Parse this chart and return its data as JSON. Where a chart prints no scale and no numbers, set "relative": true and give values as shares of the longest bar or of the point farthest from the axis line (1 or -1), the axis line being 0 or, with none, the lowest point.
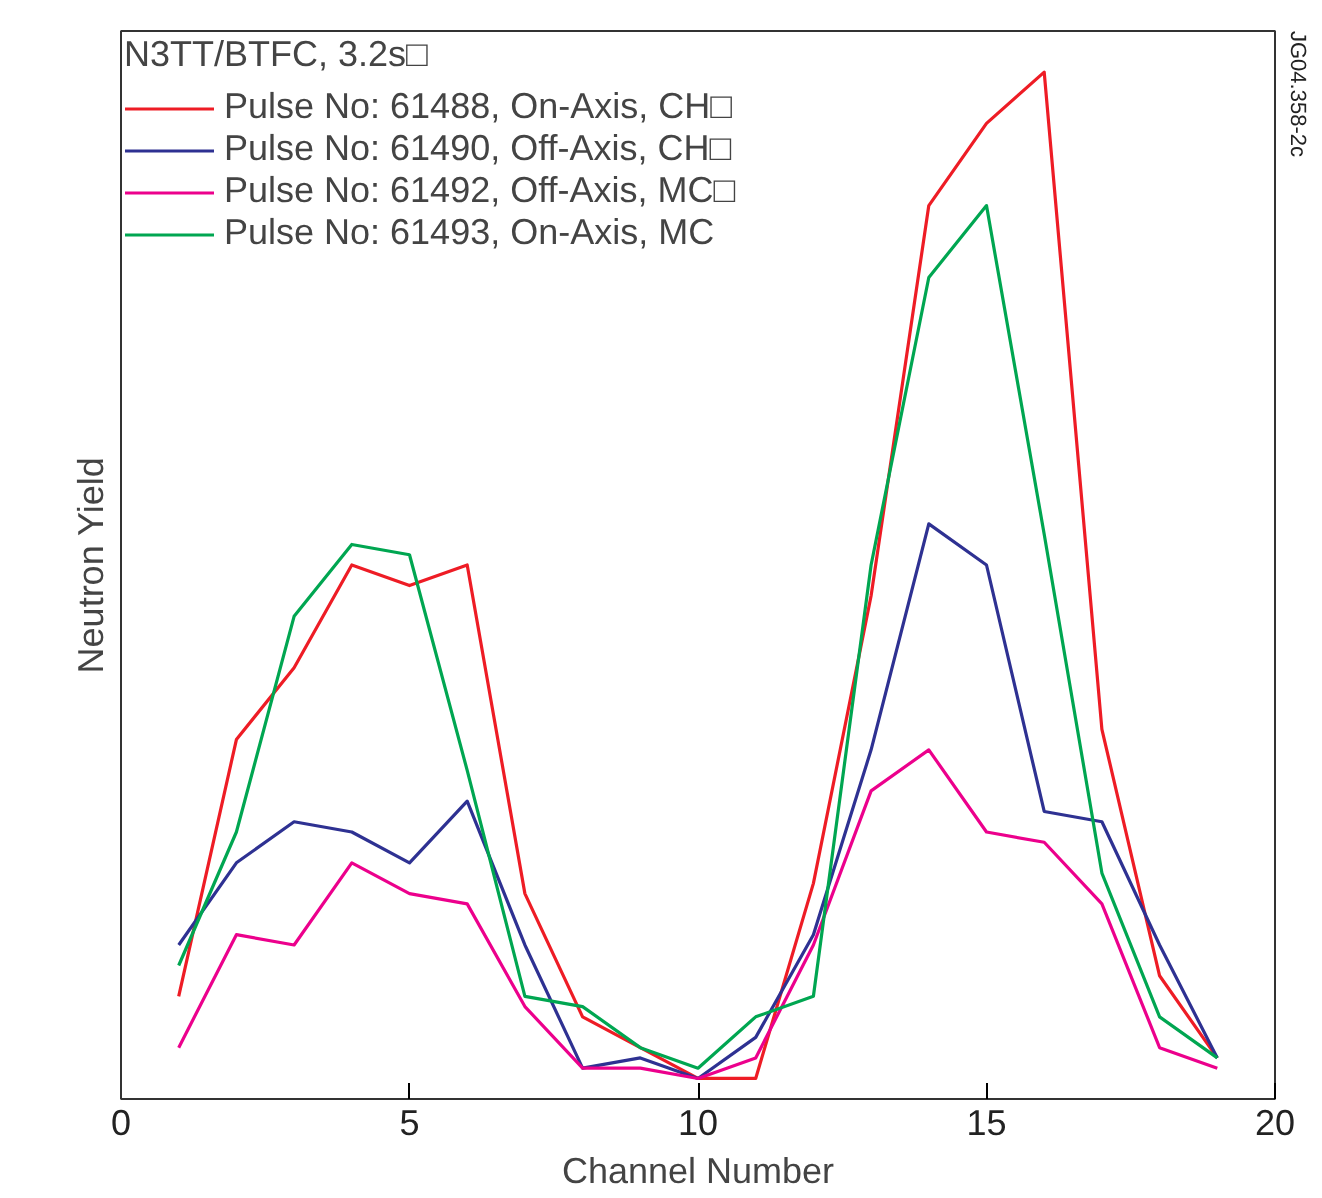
{
  "chart_data": {
    "type": "line",
    "relative": true,
    "xlabel": "Channel Number",
    "ylabel": "Neutron Yield",
    "legend_title": "N3TT/BTFC, 3.2s□",
    "x": [
      1,
      2,
      3,
      4,
      5,
      6,
      7,
      8,
      9,
      10,
      11,
      12,
      13,
      14,
      15,
      16,
      17,
      18,
      19
    ],
    "series": [
      {
        "name": "Pulse No: 61488, On-Axis, CH□",
        "color": "#ee1c25",
        "values": [
          0.1,
          0.35,
          0.42,
          0.52,
          0.5,
          0.52,
          0.2,
          0.08,
          0.05,
          0.02,
          0.02,
          0.21,
          0.49,
          0.87,
          0.95,
          1,
          0.36,
          0.12,
          0.04
        ]
      },
      {
        "name": "Pulse No: 61490, Off-Axis, CH□",
        "color": "#2e3192",
        "values": [
          0.15,
          0.23,
          0.27,
          0.26,
          0.23,
          0.29,
          0.15,
          0.03,
          0.04,
          0.02,
          0.06,
          0.16,
          0.34,
          0.56,
          0.52,
          0.28,
          0.27,
          0.15,
          0.04
        ]
      },
      {
        "name": "Pulse No: 61492, Off-Axis, MC□",
        "color": "#ec008c",
        "values": [
          0.05,
          0.16,
          0.15,
          0.23,
          0.2,
          0.19,
          0.09,
          0.03,
          0.03,
          0.02,
          0.04,
          0.15,
          0.3,
          0.34,
          0.26,
          0.25,
          0.19,
          0.05,
          0.03
        ]
      },
      {
        "name": "Pulse No: 61493, On-Axis, MC",
        "color": "#00a651",
        "values": [
          0.13,
          0.26,
          0.47,
          0.54,
          0.53,
          0.32,
          0.1,
          0.09,
          0.05,
          0.03,
          0.08,
          0.1,
          0.52,
          0.8,
          0.87,
          0.55,
          0.22,
          0.08,
          0.04
        ]
      }
    ],
    "xlim": [
      0,
      20
    ],
    "xticks": [
      0,
      5,
      10,
      15,
      20
    ],
    "annotations": [
      "JG04.358-2c"
    ],
    "grid": false,
    "legend": "top left",
    "marker": "none",
    "line_style": "solid"
  }
}
